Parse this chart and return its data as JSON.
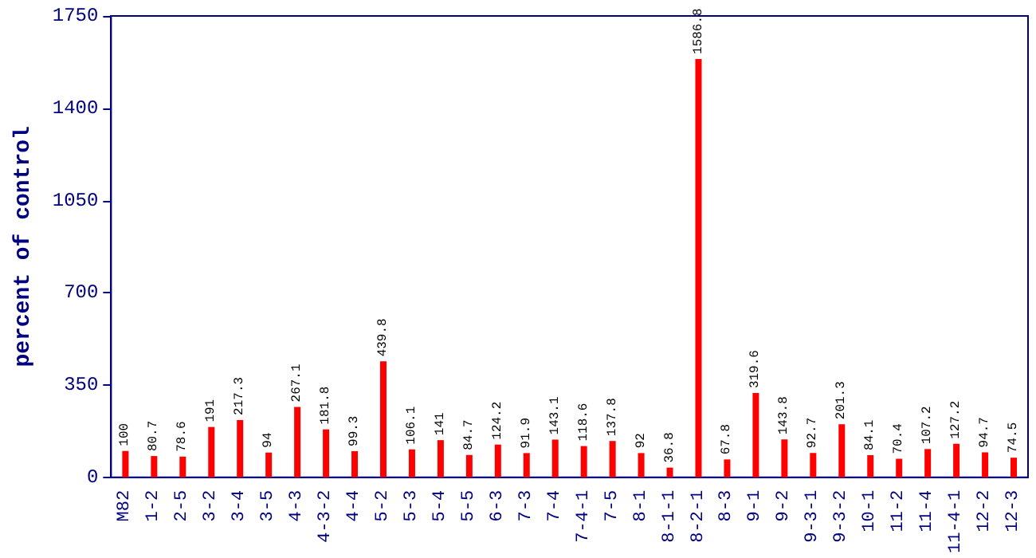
{
  "chart_data": {
    "type": "bar",
    "ylabel": "percent of control",
    "categories": [
      "M82",
      "1-2",
      "2-5",
      "3-2",
      "3-4",
      "3-5",
      "4-3",
      "4-3-2",
      "4-4",
      "5-2",
      "5-3",
      "5-4",
      "5-5",
      "6-3",
      "7-3",
      "7-4",
      "7-4-1",
      "7-5",
      "8-1",
      "8-1-1",
      "8-2-1",
      "8-3",
      "9-1",
      "9-2",
      "9-3-1",
      "9-3-2",
      "10-1",
      "11-2",
      "11-4",
      "11-4-1",
      "12-2",
      "12-3"
    ],
    "values": [
      100,
      80.7,
      78.6,
      191,
      217.3,
      94,
      267.1,
      181.8,
      99.3,
      439.8,
      106.1,
      141,
      84.7,
      124.2,
      91.9,
      143.1,
      118.6,
      137.8,
      92,
      36.8,
      1586.8,
      67.8,
      319.6,
      143.8,
      92.7,
      201.3,
      84.1,
      70.4,
      107.2,
      127.2,
      94.7,
      74.5
    ],
    "color": "#ff0000",
    "ylim": [
      0,
      1750
    ],
    "yticks": [
      0,
      350,
      700,
      1050,
      1400,
      1750
    ],
    "grid": false,
    "data_labels": true
  }
}
